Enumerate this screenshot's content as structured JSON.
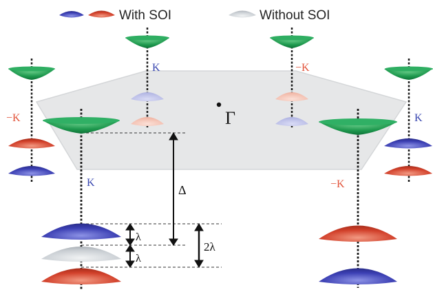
{
  "legend": {
    "with_soi": "With SOI",
    "without_soi": "Without SOI"
  },
  "labels": {
    "gamma": "Γ",
    "k_plus": "K",
    "k_minus": "−K",
    "delta": "Δ",
    "lambda": "λ",
    "two_lambda": "2λ"
  },
  "colors": {
    "spin_up_blue": "#3b3fb3",
    "spin_down_red": "#d2412b",
    "conduction_green": "#1f9a4f",
    "no_soi_gray": "#c9ced3",
    "brillouin_zone_fill": "#e6e7e8",
    "k_label_blue": "#3a48b0",
    "k_label_red": "#e2543b"
  },
  "icons": [
    "blue-lens-icon",
    "red-lens-icon",
    "gray-lens-icon"
  ]
}
